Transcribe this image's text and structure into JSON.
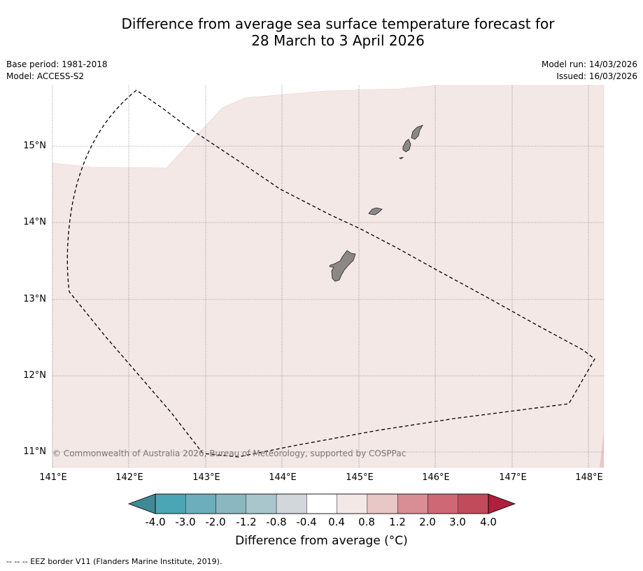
{
  "title": {
    "line1": "Difference from average sea surface temperature forecast for",
    "line2": "28 March to 3 April 2026"
  },
  "meta": {
    "base_period": "Base period: 1981-2018",
    "model": "Model: ACCESS-S2",
    "model_run": "Model run: 14/03/2026",
    "issued": "Issued: 16/03/2026"
  },
  "map": {
    "lat_labels": [
      "15°N",
      "14°N",
      "13°N",
      "12°N",
      "11°N"
    ],
    "lon_labels": [
      "141°E",
      "142°E",
      "143°E",
      "144°E",
      "145°E",
      "146°E",
      "147°E",
      "148°E"
    ],
    "copyright": "© Commonwealth of Australia 2026, Bureau of Meteorology, supported by COSPPac",
    "sea_anomaly_color": "#f4e8e7",
    "land_color": "#8c8886"
  },
  "colorbar": {
    "title": "Difference from average (°C)",
    "tick_labels": [
      "-4.0",
      "-3.0",
      "-2.0",
      "-1.2",
      "-0.8",
      "-0.4",
      "0.4",
      "0.8",
      "1.2",
      "2.0",
      "3.0",
      "4.0"
    ],
    "colors": [
      "#4aa5b4",
      "#6caebb",
      "#8bb7c1",
      "#a8c6cb",
      "#d1d7db",
      "#ffffff",
      "#f4e8e7",
      "#e8c7c6",
      "#d98e96",
      "#cd6874",
      "#c14b5b"
    ],
    "under_color": "#3f8a96",
    "over_color": "#b01f3c"
  },
  "legend": {
    "eez": "--  --  -- EEZ border V11 (Flanders Marine Institute, 2019)."
  }
}
